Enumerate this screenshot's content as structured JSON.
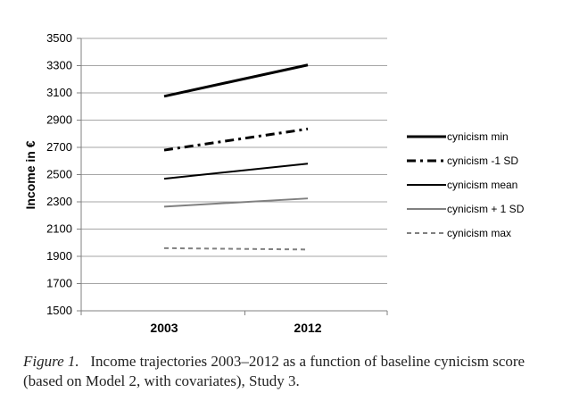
{
  "chart_data": {
    "type": "line",
    "x": [
      "2003",
      "2012"
    ],
    "ylabel": "Income in €",
    "ylim": [
      1500,
      3500
    ],
    "yticks": [
      "1500",
      "1700",
      "1900",
      "2100",
      "2300",
      "2500",
      "2700",
      "2900",
      "3100",
      "3300",
      "3500"
    ],
    "grid": true,
    "legend_position": "right",
    "series": [
      {
        "name": "cynicism min",
        "values": [
          3075,
          3305
        ],
        "style": "solid-thick",
        "color": "#000000"
      },
      {
        "name": "cynicism -1 SD",
        "values": [
          2680,
          2835
        ],
        "style": "dash-dot",
        "color": "#000000"
      },
      {
        "name": "cynicism mean",
        "values": [
          2470,
          2580
        ],
        "style": "solid",
        "color": "#000000"
      },
      {
        "name": "cynicism + 1 SD",
        "values": [
          2265,
          2325
        ],
        "style": "solid",
        "color": "#808080"
      },
      {
        "name": "cynicism max",
        "values": [
          1960,
          1950
        ],
        "style": "dashed",
        "color": "#808080"
      }
    ]
  },
  "caption": {
    "label": "Figure 1.",
    "text": "Income trajectories 2003–2012 as a function of baseline cynicism score (based on Model 2, with covariates), Study 3."
  }
}
